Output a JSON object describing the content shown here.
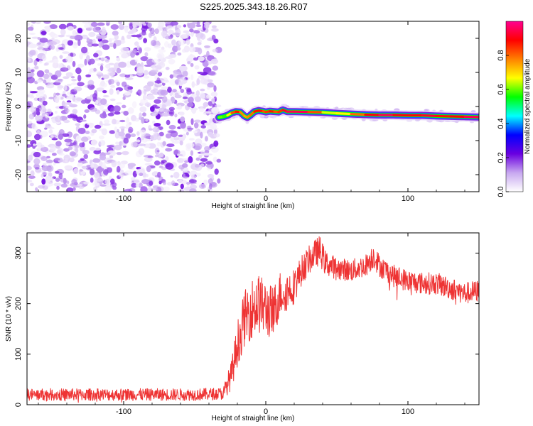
{
  "title": "S225.2025.343.18.26.R07",
  "chart_data": [
    {
      "type": "heatmap",
      "name": "spectrogram",
      "xlabel": "Height of straight line (km)",
      "ylabel": "Frequency (Hz)",
      "xlim": [
        -168,
        150
      ],
      "ylim": [
        -25,
        25
      ],
      "x_ticks": [
        -100,
        0,
        100
      ],
      "x_tick_labels": [
        "-100",
        "0",
        "100"
      ],
      "y_ticks": [
        -20,
        -10,
        0,
        10,
        20
      ],
      "y_tick_labels": [
        "-20",
        "-10",
        "0",
        "10",
        "20"
      ],
      "noise_region_x": [
        -168,
        -33
      ],
      "signal_track": {
        "x": [
          -33,
          -30,
          -27,
          -24,
          -21,
          -18,
          -15,
          -13,
          -11,
          -8,
          -5,
          -2,
          0,
          3,
          6,
          9,
          12,
          15,
          20,
          30,
          40,
          50,
          60,
          70,
          80,
          90,
          100,
          110,
          120,
          130,
          140,
          150
        ],
        "y": [
          -3.2,
          -3.0,
          -2.6,
          -1.9,
          -1.5,
          -1.6,
          -2.8,
          -3.2,
          -2.6,
          -1.5,
          -1.2,
          -1.4,
          -1.6,
          -1.4,
          -1.5,
          -1.6,
          -1.0,
          -1.5,
          -1.5,
          -1.6,
          -1.7,
          -2.0,
          -2.2,
          -2.4,
          -2.5,
          -2.5,
          -2.6,
          -2.6,
          -2.8,
          -2.9,
          -3.0,
          -3.1
        ],
        "amplitude": [
          0.65,
          0.55,
          0.6,
          0.75,
          0.9,
          0.85,
          0.7,
          0.8,
          0.75,
          0.85,
          0.9,
          0.85,
          0.8,
          0.9,
          0.85,
          0.8,
          0.9,
          0.95,
          0.95,
          0.95,
          0.7,
          0.6,
          0.75,
          0.85,
          0.95,
          0.95,
          0.85,
          0.95,
          0.9,
          0.85,
          0.95,
          0.95
        ]
      },
      "colorbar": {
        "label": "Normalized spectral amplitude",
        "range": [
          0,
          1
        ],
        "ticks": [
          0.0,
          0.2,
          0.4,
          0.6,
          0.8
        ],
        "tick_labels": [
          "0.0",
          "0.2",
          "0.4",
          "0.6",
          "0.8"
        ],
        "colors": [
          "#ffffff",
          "#c8a8f0",
          "#6a00e0",
          "#0000ff",
          "#00ffff",
          "#00ff00",
          "#ffff00",
          "#ff8000",
          "#ff0000",
          "#ff0090"
        ]
      }
    },
    {
      "type": "line",
      "name": "snr",
      "xlabel": "Height of straight line (km)",
      "ylabel": "SNR (10 * v/v)",
      "xlim": [
        -168,
        150
      ],
      "ylim": [
        0,
        340
      ],
      "x_ticks": [
        -100,
        0,
        100
      ],
      "x_tick_labels": [
        "-100",
        "0",
        "100"
      ],
      "y_ticks": [
        0,
        100,
        200,
        300
      ],
      "y_tick_labels": [
        "0",
        "100",
        "200",
        "300"
      ],
      "color": "#ee3333",
      "envelope": {
        "x": [
          -168,
          -140,
          -110,
          -80,
          -50,
          -30,
          -24,
          -20,
          -15,
          -10,
          -5,
          0,
          5,
          10,
          15,
          20,
          25,
          30,
          35,
          38,
          42,
          50,
          60,
          70,
          76,
          80,
          90,
          100,
          110,
          120,
          130,
          140,
          150
        ],
        "y": [
          20,
          20,
          20,
          20,
          20,
          22,
          60,
          120,
          170,
          190,
          200,
          190,
          180,
          220,
          225,
          235,
          265,
          285,
          300,
          305,
          280,
          270,
          265,
          275,
          295,
          275,
          255,
          245,
          240,
          240,
          230,
          220,
          225
        ],
        "noise": [
          12,
          12,
          12,
          12,
          12,
          12,
          30,
          45,
          55,
          60,
          60,
          55,
          55,
          45,
          40,
          35,
          30,
          28,
          28,
          30,
          25,
          22,
          22,
          22,
          25,
          22,
          22,
          22,
          22,
          22,
          22,
          22,
          22
        ]
      }
    }
  ]
}
